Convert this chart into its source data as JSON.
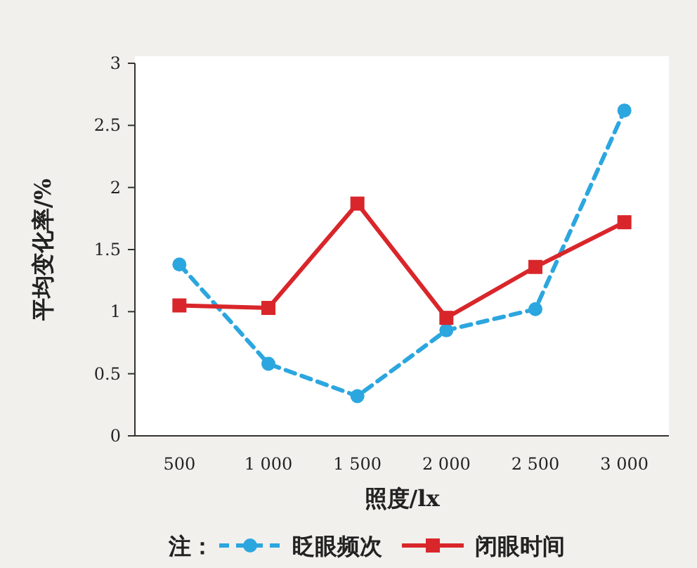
{
  "chart_data": {
    "type": "line",
    "xlabel": "照度/lx",
    "ylabel": "平均变化率/%",
    "legend_title": "注：",
    "legend": "bottom",
    "grid": false,
    "categories": [
      "500",
      "1 000",
      "1 500",
      "2 000",
      "2 500",
      "3 000"
    ],
    "ylim": [
      0,
      3
    ],
    "yticks": [
      0,
      0.5,
      1,
      1.5,
      2,
      2.5,
      3
    ],
    "series": [
      {
        "name": "眨眼频次",
        "color": "#2ca6df",
        "values": [
          1.38,
          0.58,
          0.32,
          0.85,
          1.02,
          2.62
        ],
        "line_style": "dashed",
        "marker": "circle"
      },
      {
        "name": "闭眼时间",
        "color": "#d9262b",
        "values": [
          1.05,
          1.03,
          1.87,
          0.95,
          1.36,
          1.72
        ],
        "line_style": "solid",
        "marker": "square"
      }
    ]
  }
}
